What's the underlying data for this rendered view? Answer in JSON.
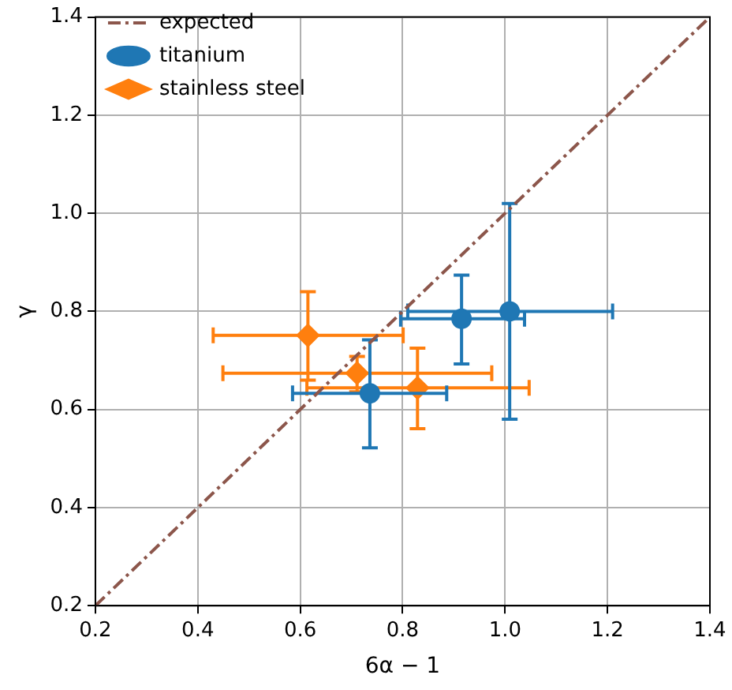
{
  "chart_data": {
    "type": "scatter",
    "xlabel": "6α − 1",
    "ylabel": "γ",
    "xlim": [
      0.2,
      1.4
    ],
    "ylim": [
      0.2,
      1.4
    ],
    "xticks": [
      {
        "value": 0.2,
        "label": "0.2"
      },
      {
        "value": 0.4,
        "label": "0.4"
      },
      {
        "value": 0.6,
        "label": "0.6"
      },
      {
        "value": 0.8,
        "label": "0.8"
      },
      {
        "value": 1,
        "label": "1.0"
      },
      {
        "value": 1.2,
        "label": "1.2"
      },
      {
        "value": 1.4,
        "label": "1.4"
      }
    ],
    "yticks": [
      {
        "value": 0.2,
        "label": "0.2"
      },
      {
        "value": 0.4,
        "label": "0.4"
      },
      {
        "value": 0.6,
        "label": "0.6"
      },
      {
        "value": 0.8,
        "label": "0.8"
      },
      {
        "value": 1,
        "label": "1.0"
      },
      {
        "value": 1.2,
        "label": "1.2"
      },
      {
        "value": 1.4,
        "label": "1.4"
      }
    ],
    "grid": true,
    "legend": "top left",
    "series": [
      {
        "name": "expected",
        "type": "line",
        "color": "#8c564b",
        "line_style": "dashdot",
        "marker": "none",
        "x": [
          0.2,
          1.4
        ],
        "values": [
          0.2,
          1.4
        ]
      },
      {
        "name": "titanium",
        "color": "#1f77b4",
        "marker": "circle",
        "x": [
          0.736,
          0.915,
          1.009
        ],
        "values": [
          0.633,
          0.785,
          0.8
        ],
        "errors": [
          [
            0.522,
            0.742
          ],
          [
            0.693,
            0.874
          ],
          [
            0.58,
            1.02
          ]
        ],
        "xerrors": [
          [
            0.585,
            0.886
          ],
          [
            0.796,
            1.038
          ],
          [
            0.81,
            1.21
          ]
        ]
      },
      {
        "name": "stainless steel",
        "color": "#ff7f0e",
        "marker": "diamond",
        "x": [
          0.615,
          0.711,
          0.829
        ],
        "values": [
          0.751,
          0.674,
          0.644
        ],
        "errors": [
          [
            0.66,
            0.84
          ],
          [
            0.636,
            0.708
          ],
          [
            0.561,
            0.725
          ]
        ],
        "xerrors": [
          [
            0.43,
            0.801
          ],
          [
            0.449,
            0.974
          ],
          [
            0.613,
            1.047
          ]
        ]
      }
    ]
  }
}
